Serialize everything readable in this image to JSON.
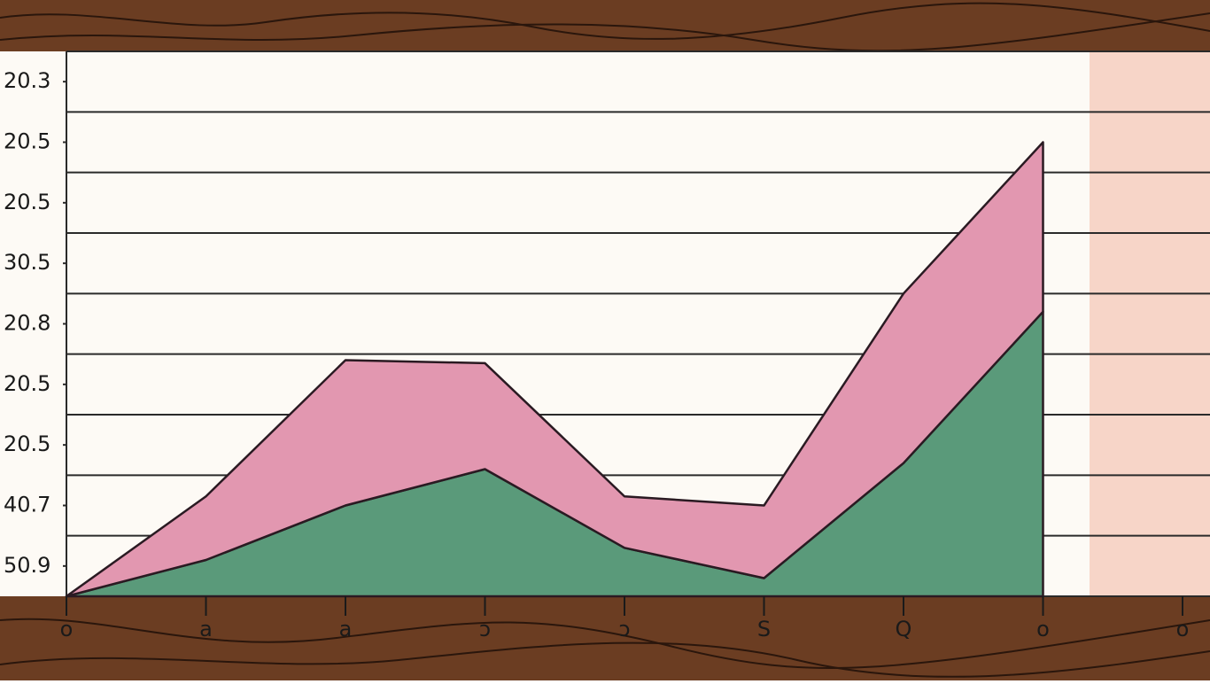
{
  "chart_data": {
    "type": "area",
    "stacked": true,
    "categories": [
      "o",
      "a",
      "a",
      "ɔ",
      "ɔ",
      "S",
      "Q",
      "o",
      "o"
    ],
    "series": [
      {
        "name": null,
        "color": "#5a9a7a",
        "values": [
          0,
          0.6,
          1.5,
          2.1,
          0.8,
          0.3,
          2.2,
          4.7,
          null
        ]
      },
      {
        "name": null,
        "color": "#e297b0",
        "values": [
          0,
          1.05,
          2.4,
          1.75,
          0.85,
          1.2,
          2.8,
          2.8,
          null
        ]
      }
    ],
    "ylim": [
      0,
      9
    ],
    "yticks": [
      {
        "value": 0.5,
        "label": "50.9"
      },
      {
        "value": 1.5,
        "label": "40.7"
      },
      {
        "value": 2.5,
        "label": "20.5"
      },
      {
        "value": 3.5,
        "label": "20.5"
      },
      {
        "value": 4.5,
        "label": "20.8"
      },
      {
        "value": 5.5,
        "label": "30.5"
      },
      {
        "value": 6.5,
        "label": "20.5"
      },
      {
        "value": 7.5,
        "label": "20.5"
      },
      {
        "value": 8.5,
        "label": "20.3"
      }
    ],
    "grid": true
  }
}
